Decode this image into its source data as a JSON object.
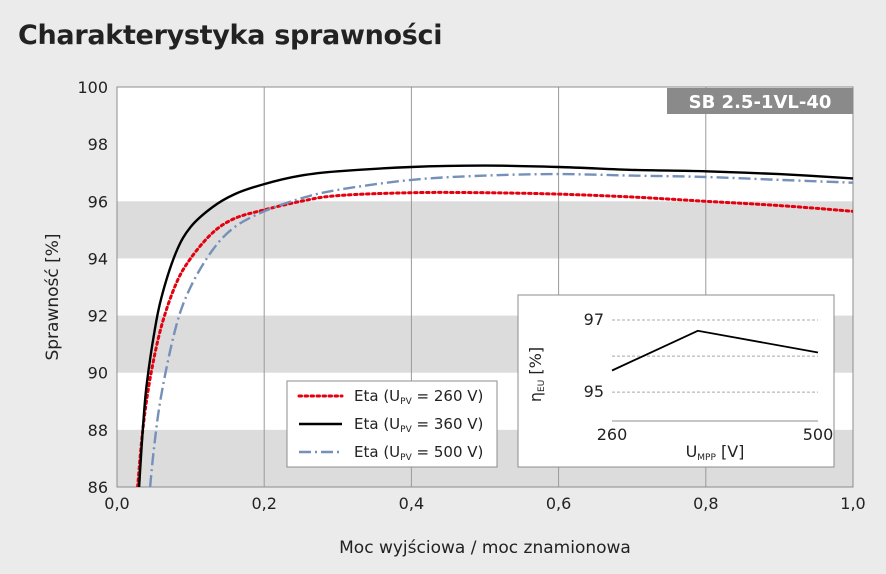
{
  "chart_data": {
    "type": "line",
    "title": "Charakterystyka sprawności",
    "badge": "SB 2.5-1VL-40",
    "xlabel": "Moc wyjściowa / moc znamionowa",
    "ylabel": "Sprawność [%]",
    "xlim": [
      0,
      1
    ],
    "ylim": [
      86,
      100
    ],
    "xticks": [
      "0,0",
      "0,2",
      "0,4",
      "0,6",
      "0,8",
      "1,0"
    ],
    "yticks": [
      "86",
      "88",
      "90",
      "92",
      "94",
      "96",
      "98",
      "100"
    ],
    "grid": true,
    "legend": "bottom-left",
    "colors": {
      "red": "#e3000f",
      "black": "#000000",
      "blue": "#7590b9"
    },
    "series": [
      {
        "name": "Eta (U",
        "sub": "PV",
        "suffix": " = 260 V)",
        "style": "dotted",
        "color": "#e3000f",
        "x": [
          0.028,
          0.035,
          0.045,
          0.06,
          0.08,
          0.1,
          0.13,
          0.16,
          0.2,
          0.25,
          0.3,
          0.4,
          0.5,
          0.6,
          0.7,
          0.8,
          0.9,
          1.0
        ],
        "y": [
          86.0,
          88.0,
          89.8,
          91.6,
          93.1,
          94.0,
          94.9,
          95.4,
          95.7,
          96.0,
          96.2,
          96.3,
          96.3,
          96.25,
          96.15,
          96.0,
          95.85,
          95.65
        ]
      },
      {
        "name": "Eta (U",
        "sub": "PV",
        "suffix": " = 360 V)",
        "style": "solid",
        "color": "#000000",
        "x": [
          0.03,
          0.035,
          0.04,
          0.05,
          0.06,
          0.08,
          0.1,
          0.13,
          0.16,
          0.2,
          0.25,
          0.3,
          0.4,
          0.5,
          0.6,
          0.7,
          0.8,
          0.9,
          1.0
        ],
        "y": [
          86.0,
          88.0,
          89.5,
          91.3,
          92.6,
          94.2,
          95.1,
          95.8,
          96.25,
          96.6,
          96.9,
          97.05,
          97.2,
          97.25,
          97.2,
          97.1,
          97.05,
          96.95,
          96.8
        ]
      },
      {
        "name": "Eta (U",
        "sub": "PV",
        "suffix": " = 500 V)",
        "style": "dashdot",
        "color": "#7590b9",
        "x": [
          0.045,
          0.05,
          0.06,
          0.08,
          0.1,
          0.13,
          0.16,
          0.2,
          0.25,
          0.3,
          0.4,
          0.5,
          0.6,
          0.7,
          0.8,
          0.9,
          1.0
        ],
        "y": [
          86.0,
          87.3,
          89.2,
          91.6,
          93.0,
          94.3,
          95.1,
          95.65,
          96.1,
          96.4,
          96.75,
          96.9,
          96.95,
          96.9,
          96.85,
          96.75,
          96.65
        ]
      }
    ],
    "inset": {
      "type": "line",
      "xlabel": "U",
      "xlabel_sub": "MPP",
      "xlabel_unit": " [V]",
      "ylabel": "η",
      "ylabel_sub": "EU",
      "ylabel_unit": " [%]",
      "xlim": [
        260,
        500
      ],
      "ylim": [
        94.2,
        97
      ],
      "xticks": [
        "260",
        "500"
      ],
      "yticks": [
        "95",
        "97"
      ],
      "x": [
        260,
        360,
        500
      ],
      "y": [
        95.6,
        96.7,
        96.1
      ]
    }
  }
}
